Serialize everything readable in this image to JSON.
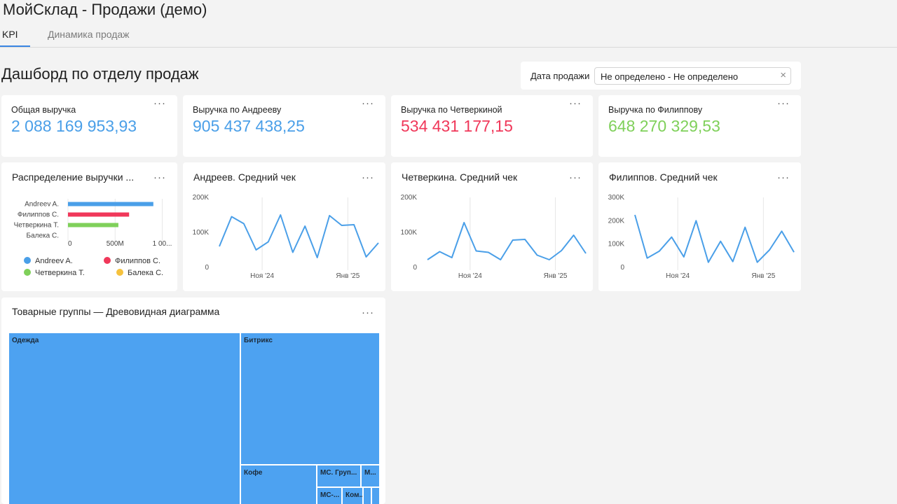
{
  "app": {
    "title": "МойСклад - Продажи (демо)"
  },
  "tabs": [
    {
      "label": "KPI"
    },
    {
      "label": "Динамика продаж"
    }
  ],
  "dashboard": {
    "title": "Дашборд по отделу продаж"
  },
  "filter": {
    "label": "Дата продажи",
    "value": "Не определено - Не определено",
    "clear_icon": "×"
  },
  "menu_icon": "···",
  "kpis": [
    {
      "label": "Общая выручка",
      "value": "2 088 169 953,93",
      "color": "#4a9fe8"
    },
    {
      "label": "Выручка по Андрееву",
      "value": "905 437 438,25",
      "color": "#4a9fe8"
    },
    {
      "label": "Выручка по Четверкиной",
      "value": "534 431 177,15",
      "color": "#f0385a"
    },
    {
      "label": "Выручка по Филиппову",
      "value": "648 270 329,53",
      "color": "#7fd05a"
    }
  ],
  "revenue_distribution": {
    "title": "Распределение выручки ...",
    "chart_data": {
      "type": "bar",
      "orientation": "horizontal",
      "categories": [
        "Andreev A.",
        "Филиппов С.",
        "Четверкина Т.",
        "Балека С."
      ],
      "values": [
        905437438.25,
        648270329.53,
        534431177.15,
        0
      ],
      "colors": [
        "#4a9fe8",
        "#f0385a",
        "#7fd05a",
        "#f6c23e"
      ],
      "xticks": [
        "0",
        "500M",
        "1 00..."
      ],
      "xlim": [
        0,
        1100000000
      ],
      "legend": [
        "Andreev A.",
        "Филиппов С.",
        "Четверкина Т.",
        "Балека С."
      ]
    }
  },
  "avg_charts": [
    {
      "title": "Андреев. Средний чек",
      "chart_data": {
        "type": "line",
        "ylim": [
          0,
          200000
        ],
        "yticks": [
          "0",
          "100K",
          "200K"
        ],
        "xticks": [
          "Ноя '24",
          "Янв '25"
        ],
        "values": [
          60000,
          145000,
          125000,
          50000,
          73000,
          150000,
          43000,
          118000,
          28000,
          148000,
          120000,
          122000,
          30000,
          70000
        ]
      }
    },
    {
      "title": "Четверкина. Средний чек",
      "chart_data": {
        "type": "line",
        "ylim": [
          0,
          200000
        ],
        "yticks": [
          "0",
          "100K",
          "200K"
        ],
        "xticks": [
          "Ноя '24",
          "Янв '25"
        ],
        "values": [
          22000,
          45000,
          28000,
          128000,
          47000,
          43000,
          22000,
          78000,
          80000,
          35000,
          22000,
          48000,
          92000,
          40000
        ]
      }
    },
    {
      "title": "Филиппов. Средний чек",
      "chart_data": {
        "type": "line",
        "ylim": [
          0,
          300000
        ],
        "yticks": [
          "0",
          "100K",
          "200K",
          "300K"
        ],
        "xticks": [
          "Ноя '24",
          "Янв '25"
        ],
        "values": [
          225000,
          40000,
          70000,
          130000,
          45000,
          200000,
          22000,
          112000,
          25000,
          172000,
          22000,
          75000,
          155000,
          65000
        ]
      }
    }
  ],
  "treemap": {
    "title": "Товарные группы — Древовидная диаграмма",
    "chart_data": {
      "type": "treemap",
      "cells": [
        {
          "label": "Одежда"
        },
        {
          "label": "Битрикс"
        },
        {
          "label": "Кофе"
        },
        {
          "label": "МС. Груп..."
        },
        {
          "label": "М..."
        },
        {
          "label": "МС-..."
        },
        {
          "label": "Ком..."
        }
      ]
    }
  }
}
